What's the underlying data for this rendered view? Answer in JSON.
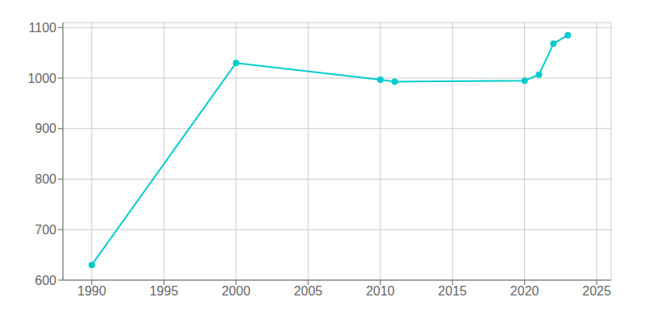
{
  "chart_data": {
    "type": "line",
    "x": [
      1990,
      2000,
      2010,
      2011,
      2020,
      2021,
      2022,
      2023
    ],
    "values": [
      630,
      1030,
      997,
      993,
      995,
      1007,
      1068,
      1085
    ],
    "color": "#00CCCC",
    "marker": "circle",
    "xlim": [
      1988,
      2026
    ],
    "ylim": [
      600,
      1110
    ],
    "xticks": [
      1990,
      1995,
      2000,
      2005,
      2010,
      2015,
      2020,
      2025
    ],
    "yticks": [
      600,
      700,
      800,
      900,
      1000,
      1100
    ],
    "grid": true
  }
}
